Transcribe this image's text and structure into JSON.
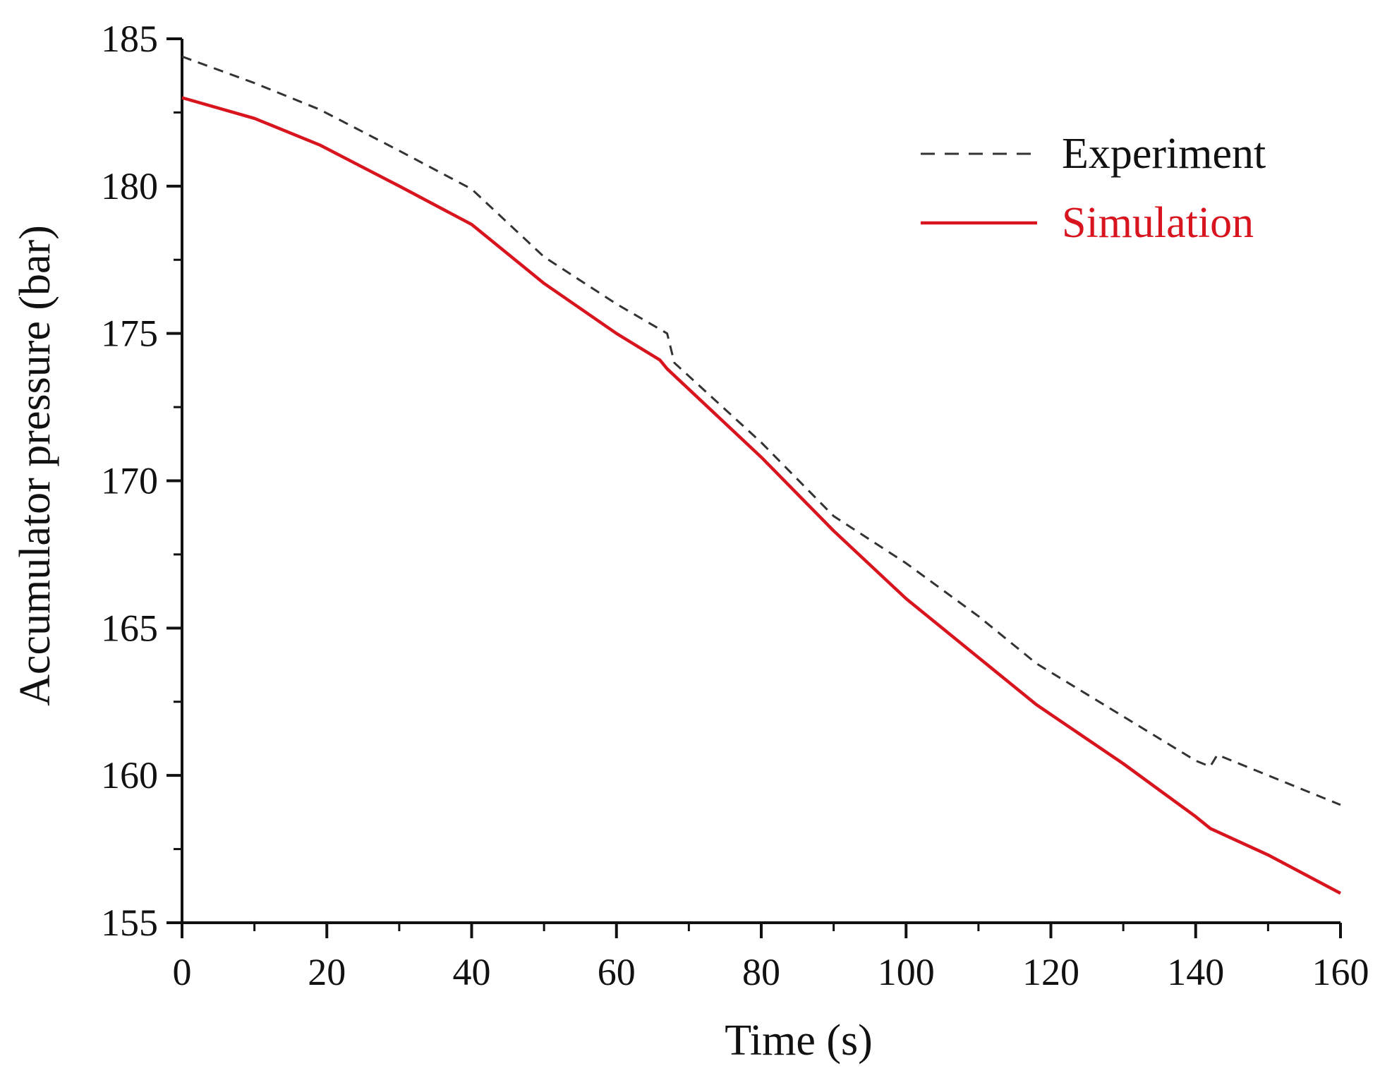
{
  "chart_data": {
    "type": "line",
    "title": "",
    "xlabel": "Time (s)",
    "ylabel": "Accumulator pressure  (bar)",
    "xlim": [
      0,
      160
    ],
    "ylim": [
      155,
      185
    ],
    "xticks": [
      0,
      20,
      40,
      60,
      80,
      100,
      120,
      140,
      160
    ],
    "xtick_labels": [
      "0",
      "20",
      "40",
      "60",
      "80",
      "100",
      "120",
      "140",
      "160"
    ],
    "yticks": [
      155,
      160,
      165,
      170,
      175,
      180,
      185
    ],
    "ytick_labels": [
      "155",
      "160",
      "165",
      "170",
      "175",
      "180",
      "185"
    ],
    "grid": false,
    "legend_position": "top-right",
    "series": [
      {
        "name": "Experiment",
        "color": "#333333",
        "style": "dashed",
        "x": [
          0,
          10,
          19,
          30,
          40,
          50,
          60,
          67,
          68,
          80,
          90,
          100,
          110,
          118,
          130,
          140,
          142,
          143,
          150,
          160
        ],
        "y": [
          184.4,
          183.5,
          182.6,
          181.2,
          179.9,
          177.6,
          176.0,
          175.0,
          174.0,
          171.3,
          168.8,
          167.2,
          165.4,
          163.8,
          162.0,
          160.5,
          160.3,
          160.7,
          160.0,
          159.0
        ]
      },
      {
        "name": "Simulation",
        "color": "#d8151e",
        "style": "solid",
        "x": [
          0,
          10,
          19,
          30,
          40,
          50,
          60,
          66,
          67,
          80,
          90,
          100,
          110,
          118,
          130,
          140,
          142,
          150,
          160
        ],
        "y": [
          183.0,
          182.3,
          181.4,
          180.0,
          178.7,
          176.7,
          175.0,
          174.1,
          173.8,
          170.8,
          168.3,
          166.0,
          164.0,
          162.4,
          160.4,
          158.6,
          158.2,
          157.3,
          156.0
        ]
      }
    ]
  }
}
